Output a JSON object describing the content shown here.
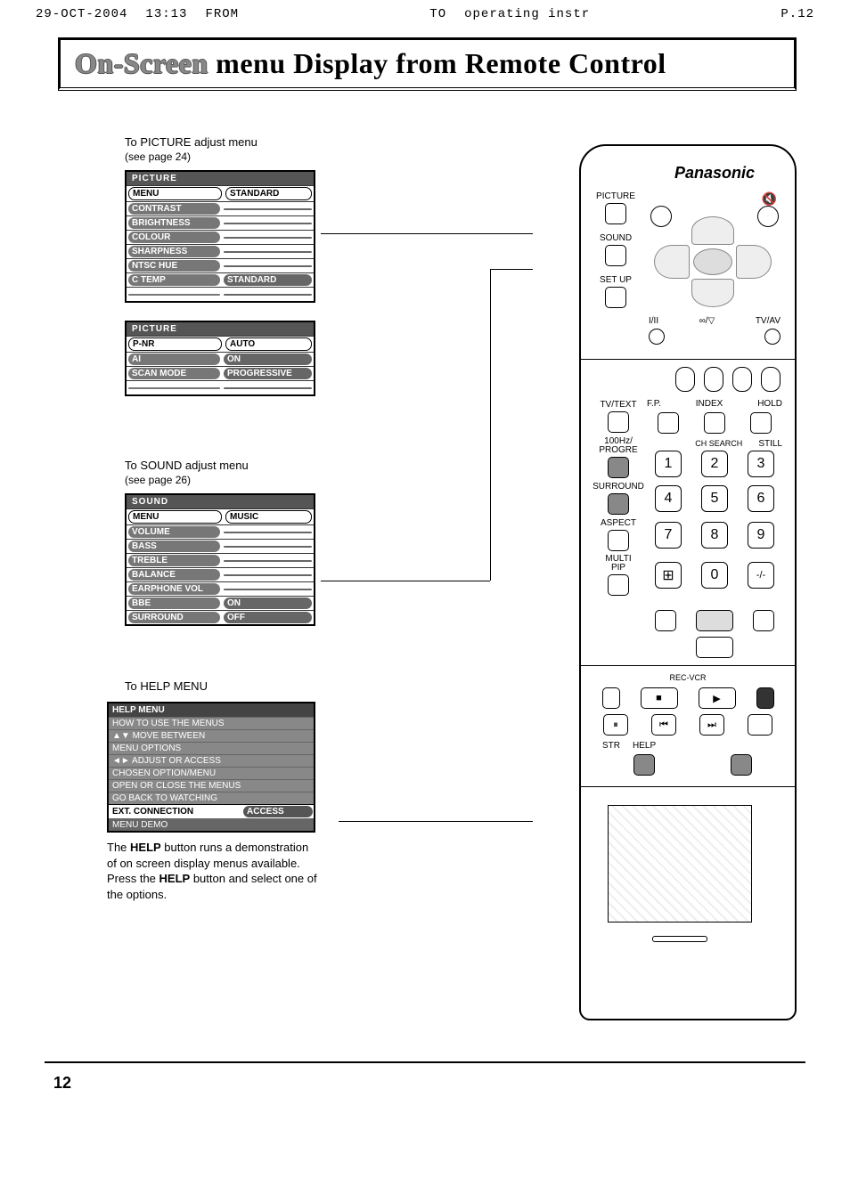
{
  "fax": {
    "date": "29-OCT-2004",
    "time": "13:13",
    "from": "FROM",
    "to_label": "TO",
    "to_value": "operating instr",
    "page": "P.12"
  },
  "title": {
    "part1": "On-Screen",
    "part2": " menu ",
    "part3": "Display from Remote Control"
  },
  "picture_section": {
    "heading": "To PICTURE adjust menu",
    "sub": "(see page 24)"
  },
  "picture_menu1": {
    "header": "PICTURE",
    "rows": [
      {
        "label": "MENU",
        "label_light": true,
        "value": "STANDARD"
      },
      {
        "label": "CONTRAST",
        "value": ""
      },
      {
        "label": "BRIGHTNESS",
        "value": ""
      },
      {
        "label": "COLOUR",
        "value": ""
      },
      {
        "label": "SHARPNESS",
        "value": ""
      },
      {
        "label": "NTSC HUE",
        "value": ""
      },
      {
        "label": "C TEMP",
        "value": "STANDARD"
      },
      {
        "label": "",
        "value": ""
      }
    ]
  },
  "picture_menu2": {
    "header": "PICTURE",
    "rows": [
      {
        "label": "P-NR",
        "label_light": true,
        "value": "AUTO"
      },
      {
        "label": "AI",
        "value": "ON"
      },
      {
        "label": "SCAN MODE",
        "value": "PROGRESSIVE"
      },
      {
        "label": "",
        "value": ""
      }
    ]
  },
  "sound_section": {
    "heading": "To SOUND adjust menu",
    "sub": "(see page 26)"
  },
  "sound_menu": {
    "header": "SOUND",
    "rows": [
      {
        "label": "MENU",
        "label_light": true,
        "value": "MUSIC"
      },
      {
        "label": "VOLUME",
        "value": ""
      },
      {
        "label": "BASS",
        "value": ""
      },
      {
        "label": "TREBLE",
        "value": ""
      },
      {
        "label": "BALANCE",
        "value": ""
      },
      {
        "label": "EARPHONE VOL",
        "value": ""
      },
      {
        "label": "BBE",
        "value": "ON"
      },
      {
        "label": "SURROUND",
        "value": "OFF"
      }
    ]
  },
  "help_section": {
    "heading": "To HELP MENU"
  },
  "help_menu": {
    "header": "HELP MENU",
    "lines": [
      "HOW TO USE THE MENUS",
      "▲▼ MOVE BETWEEN",
      "MENU OPTIONS",
      "◄► ADJUST OR ACCESS",
      "CHOSEN OPTION/MENU",
      "OPEN OR CLOSE THE MENUS",
      "GO BACK TO WATCHING"
    ],
    "row1": {
      "label": "EXT. CONNECTION",
      "value": "ACCESS"
    },
    "row2": {
      "label": "MENU DEMO",
      "value": ""
    }
  },
  "help_text": {
    "l1a": "The ",
    "l1b": "HELP",
    "l1c": " button runs a demonstration of on screen display menus available.",
    "l2a": "Press the ",
    "l2b": "HELP",
    "l2c": " button and select one of the options."
  },
  "remote": {
    "brand": "Panasonic",
    "mute": "🔇",
    "side": {
      "picture": "PICTURE",
      "sound": "SOUND",
      "setup": "SET UP"
    },
    "sub": {
      "l1": "I/II",
      "l2": "∞/▽",
      "r": "TV/AV"
    },
    "func1": {
      "tvtext": "TV/TEXT",
      "fp": "F.P.",
      "index": "INDEX",
      "hold": "HOLD"
    },
    "func2": {
      "hz": "100Hz/\nPROGRE",
      "chsearch": "CH SEARCH",
      "still": "STILL"
    },
    "surround": "SURROUND",
    "aspect": "ASPECT",
    "multi": "MULTI\nPIP",
    "nums": [
      "1",
      "2",
      "3",
      "4",
      "5",
      "6",
      "7",
      "8",
      "9",
      "0"
    ],
    "swap": "⊞",
    "dash": "-/-",
    "rec": "REC-VCR",
    "pb": [
      "■",
      "▶",
      "⏸",
      "⏮",
      "⏭"
    ],
    "str": "STR",
    "help": "HELP"
  },
  "page_number": "12"
}
